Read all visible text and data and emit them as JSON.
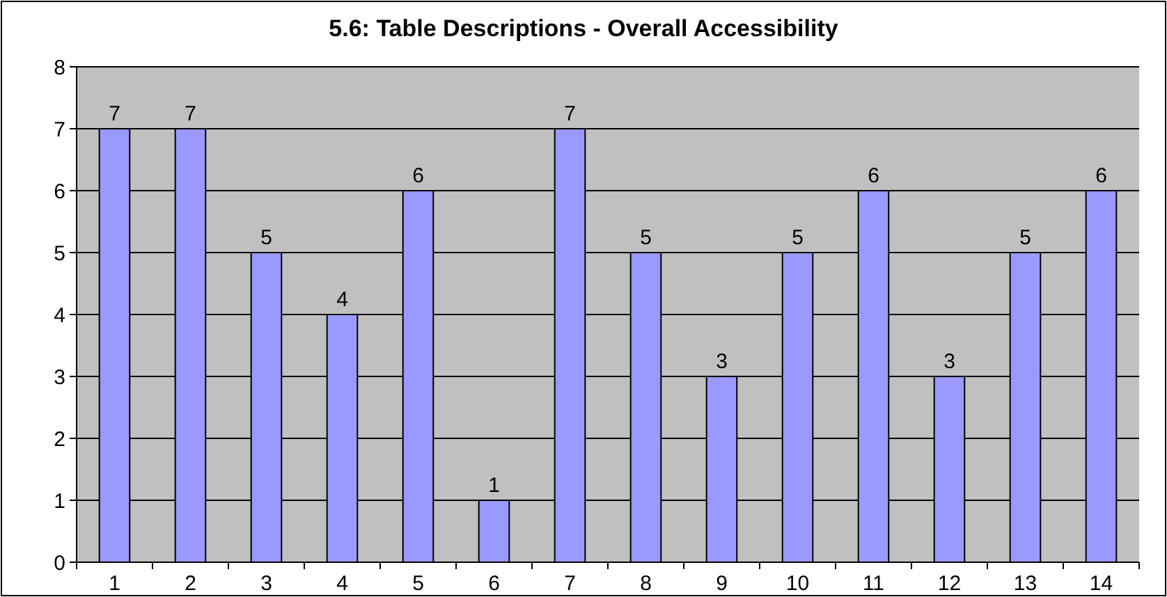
{
  "chart_data": {
    "type": "bar",
    "title": "5.6: Table Descriptions - Overall Accessibility",
    "categories": [
      "1",
      "2",
      "3",
      "4",
      "5",
      "6",
      "7",
      "8",
      "9",
      "10",
      "11",
      "12",
      "13",
      "14"
    ],
    "values": [
      7,
      7,
      5,
      4,
      6,
      1,
      7,
      5,
      3,
      5,
      6,
      3,
      5,
      6
    ],
    "color": "#9999ff",
    "ylim": [
      0,
      8
    ],
    "yticks": [
      0,
      1,
      2,
      3,
      4,
      5,
      6,
      7,
      8
    ],
    "grid": "y",
    "data_labels": true
  }
}
